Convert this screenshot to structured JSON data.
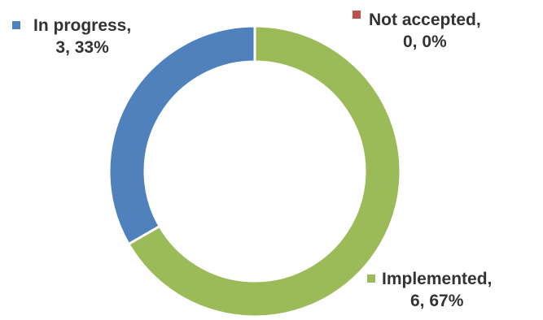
{
  "chart_data": {
    "type": "pie",
    "style": "donut",
    "legend": "none",
    "slices": [
      {
        "category": "Not accepted",
        "value": 0,
        "percent": "0%",
        "color": "#C0504D"
      },
      {
        "category": "Implemented",
        "value": 6,
        "percent": "67%",
        "color": "#9BBB59"
      },
      {
        "category": "In progress",
        "value": 3,
        "percent": "33%",
        "color": "#4F81BD"
      }
    ],
    "data_labels": [
      {
        "line1": "Not accepted,",
        "line2": "0, 0%"
      },
      {
        "line1": "Implemented,",
        "line2": "6, 67%"
      },
      {
        "line1": "In progress,",
        "line2": "3, 33%"
      }
    ]
  }
}
